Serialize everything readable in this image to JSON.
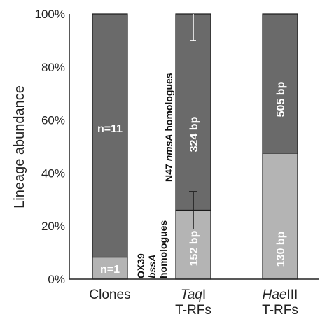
{
  "chart_data": {
    "type": "bar",
    "stacked": true,
    "ylabel": "Lineage abundance",
    "ylim": [
      0,
      100
    ],
    "yticks": [
      "0%",
      "20%",
      "40%",
      "60%",
      "80%",
      "100%"
    ],
    "categories": [
      {
        "lines": [
          "Clones"
        ]
      },
      {
        "lines": [
          {
            "italic": "Taq",
            "rest": "I"
          },
          "T-RFs"
        ]
      },
      {
        "lines": [
          {
            "italic": "Hae",
            "rest": "III"
          },
          "T-RFs"
        ]
      }
    ],
    "series": [
      {
        "name": "OX39 bssA homologues",
        "color": "#b4b4b4",
        "values": [
          8.3,
          26,
          47.5
        ]
      },
      {
        "name": "N47 nmsA homologues",
        "color": "#6a6a6a",
        "values": [
          91.7,
          74,
          52.5
        ]
      }
    ],
    "bar_labels": {
      "lower": [
        "n=1",
        "152 bp",
        "130 bp"
      ],
      "upper": [
        "n=11",
        "324 bp",
        "505 bp"
      ]
    },
    "error_bars": [
      {
        "category": 1,
        "at": 26,
        "low": 19,
        "high": 33
      },
      {
        "category": 1,
        "at": 100,
        "low": 90,
        "high": 100
      }
    ],
    "annotations": {
      "ox39": {
        "l1": "OX39",
        "l2": "bssA",
        "l3": "homologues"
      },
      "n47": {
        "prefix": "N47 ",
        "italic": "nmsA",
        "suffix": " homologues"
      }
    },
    "grid": false
  }
}
